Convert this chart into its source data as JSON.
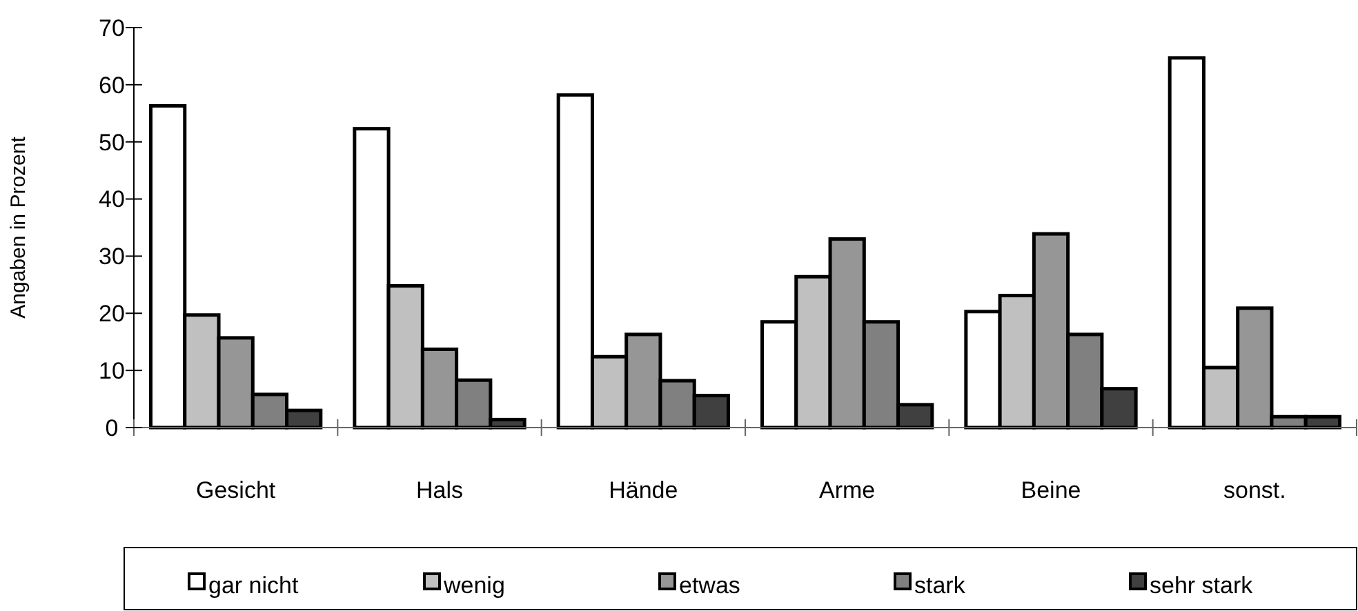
{
  "chart_data": {
    "type": "bar",
    "ylabel": "Angaben in Prozent",
    "categories": [
      "Gesicht",
      "Hals",
      "Hände",
      "Arme",
      "Beine",
      "sonst."
    ],
    "ylim": [
      0,
      70
    ],
    "yticks": [
      0,
      10,
      20,
      30,
      40,
      50,
      60,
      70
    ],
    "grid": false,
    "legend": "bottom",
    "series": [
      {
        "name": "gar nicht",
        "color": "#ffffff",
        "values": [
          56.3,
          52.3,
          58.2,
          18.5,
          20.3,
          64.7
        ]
      },
      {
        "name": "wenig",
        "color": "#c0c0c0",
        "values": [
          19.7,
          24.8,
          12.4,
          26.4,
          23.1,
          10.5
        ]
      },
      {
        "name": "etwas",
        "color": "#969696",
        "values": [
          15.7,
          13.7,
          16.3,
          33.0,
          33.9,
          20.9
        ]
      },
      {
        "name": "stark",
        "color": "#808080",
        "values": [
          5.8,
          8.3,
          8.2,
          18.5,
          16.3,
          1.9
        ]
      },
      {
        "name": "sehr stark",
        "color": "#404040",
        "values": [
          3.0,
          1.4,
          5.6,
          4.0,
          6.8,
          1.9
        ]
      }
    ]
  }
}
